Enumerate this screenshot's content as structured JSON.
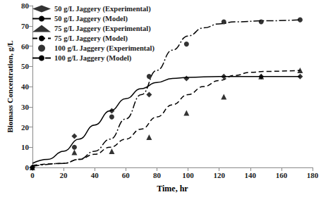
{
  "chart_data": {
    "type": "scatter",
    "x_label": "Time, hr",
    "y_label": "Biomass Concentration, g/L",
    "xlim": [
      0,
      180
    ],
    "xticks": [
      0,
      20,
      40,
      60,
      80,
      100,
      120,
      140,
      160,
      180
    ],
    "ylim": [
      0,
      80
    ],
    "yticks": [
      0,
      10,
      20,
      30,
      40,
      50,
      60,
      70,
      80
    ],
    "grid": false,
    "legend": "top-left",
    "series": [
      {
        "name": "50 g/L Jaggery (Experimental)",
        "type": "scatter",
        "marker": "diamond",
        "color": "#000000",
        "x": [
          0,
          27,
          51,
          75,
          99,
          123,
          147,
          172
        ],
        "values": [
          0,
          15.5,
          28,
          36,
          44,
          45,
          45,
          45
        ]
      },
      {
        "name": "50 g/L Jaggery (Model)",
        "type": "line",
        "line_style": "solid",
        "color": "#000000",
        "x": [
          0,
          10,
          20,
          30,
          40,
          50,
          60,
          70,
          80,
          90,
          100,
          120,
          140,
          160,
          172
        ],
        "values": [
          2,
          4,
          8,
          14,
          21,
          28,
          34,
          39,
          42,
          44,
          44.5,
          45,
          45,
          45,
          45
        ]
      },
      {
        "name": "75 g/L Jaggery (Experimental)",
        "type": "scatter",
        "marker": "triangle",
        "color": "#000000",
        "x": [
          0,
          27,
          51,
          75,
          99,
          123,
          147,
          172
        ],
        "values": [
          0,
          7.5,
          8,
          15,
          27,
          35,
          45,
          48
        ]
      },
      {
        "name": "75 g/L Jaggery (Model)",
        "type": "line",
        "line_style": "dashed",
        "color": "#000000",
        "x": [
          0,
          20,
          30,
          40,
          50,
          60,
          70,
          80,
          90,
          100,
          110,
          120,
          130,
          140,
          150,
          172
        ],
        "values": [
          1,
          2,
          4,
          6.5,
          10,
          14,
          19,
          25,
          31,
          36,
          40,
          43,
          45.5,
          47,
          47.5,
          48
        ]
      },
      {
        "name": "100 g/L Jaggery (Experimental)",
        "type": "scatter",
        "marker": "circle",
        "color": "#000000",
        "x": [
          0,
          27,
          51,
          75,
          99,
          123,
          147,
          172
        ],
        "values": [
          0,
          10,
          25,
          45,
          61,
          72,
          72,
          73
        ]
      },
      {
        "name": "100 g/L Jaggery (Model)",
        "type": "line",
        "line_style": "dashdot",
        "color": "#000000",
        "x": [
          0,
          20,
          30,
          40,
          50,
          60,
          70,
          80,
          90,
          100,
          110,
          120,
          130,
          150,
          172
        ],
        "values": [
          0.5,
          2,
          4,
          8,
          14,
          24,
          36,
          48,
          58,
          65,
          69,
          71,
          72,
          72.5,
          73
        ]
      }
    ]
  }
}
